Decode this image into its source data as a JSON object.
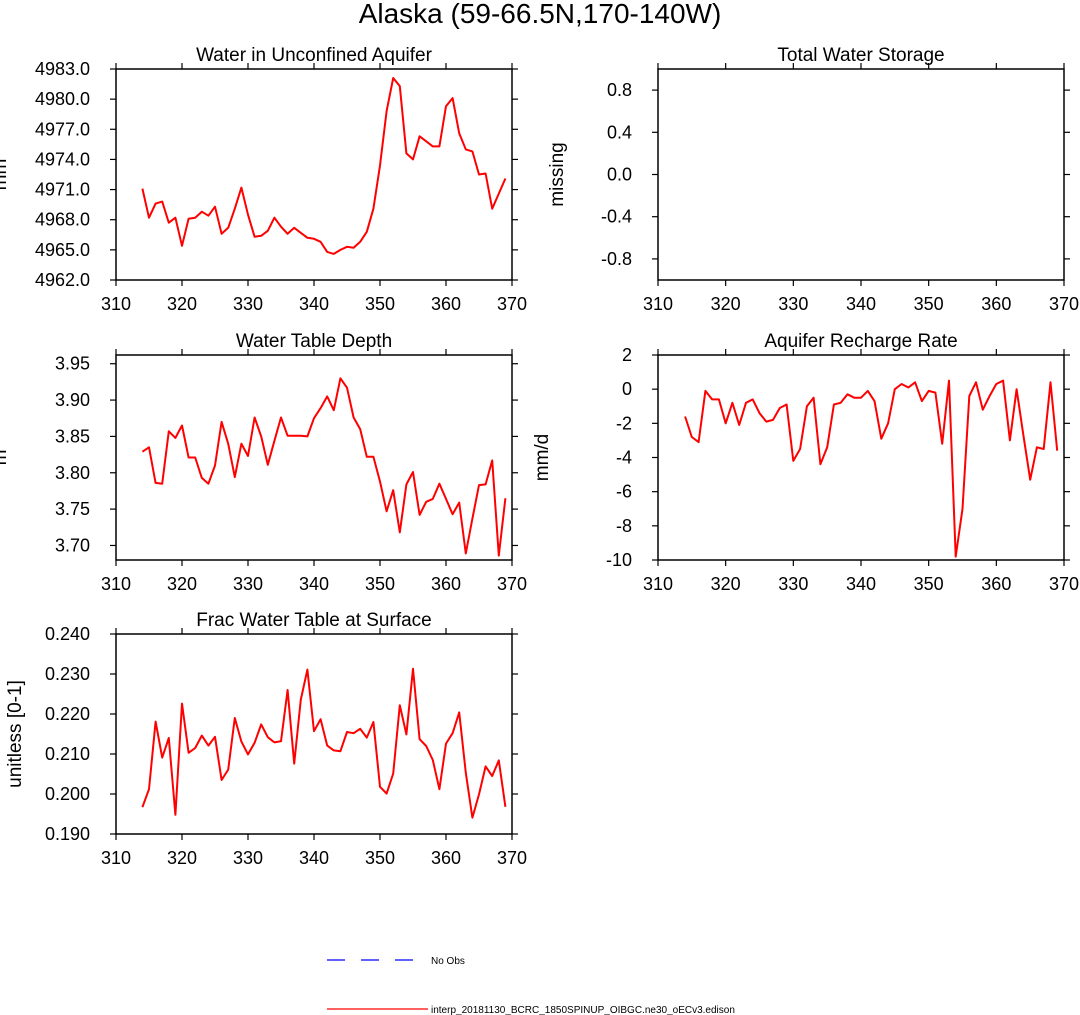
{
  "figure": {
    "title": "Alaska (59-66.5N,170-140W)"
  },
  "legend": {
    "obs_label": "No Obs",
    "obs_color": "#0000ff",
    "model_label": "interp_20181130_BCRC_1850SPINUP_OIBGC.ne30_oECv3.edison",
    "model_color": "#ff0000"
  },
  "chart_data": [
    {
      "type": "line",
      "title": "Water in Unconfined Aquifer",
      "xlabel": "",
      "ylabel": "mm",
      "xlim": [
        310,
        370
      ],
      "ylim": [
        4962.0,
        4983.0
      ],
      "xticks": [
        "310",
        "320",
        "330",
        "340",
        "350",
        "360",
        "370"
      ],
      "yticks": [
        "4962.0",
        "4965.0",
        "4968.0",
        "4971.0",
        "4974.0",
        "4977.0",
        "4980.0",
        "4983.0"
      ],
      "series": [
        {
          "color": "#ff0000",
          "x": [
            314,
            315,
            316,
            317,
            318,
            319,
            320,
            321,
            322,
            323,
            324,
            325,
            326,
            327,
            328,
            329,
            330,
            331,
            332,
            333,
            334,
            335,
            336,
            337,
            338,
            339,
            340,
            341,
            342,
            343,
            344,
            345,
            346,
            347,
            348,
            349,
            350,
            351,
            352,
            353,
            354,
            355,
            356,
            357,
            358,
            359,
            360,
            361,
            362,
            363,
            364,
            365,
            366,
            367,
            368,
            369
          ],
          "y": [
            4971.1,
            4968.2,
            4969.6,
            4969.8,
            4967.7,
            4968.2,
            4965.4,
            4968.1,
            4968.2,
            4968.8,
            4968.4,
            4969.3,
            4966.6,
            4967.2,
            4969.1,
            4971.2,
            4968.5,
            4966.3,
            4966.4,
            4966.9,
            4968.2,
            4967.3,
            4966.6,
            4967.2,
            4966.7,
            4966.2,
            4966.1,
            4965.8,
            4964.8,
            4964.6,
            4965.0,
            4965.3,
            4965.2,
            4965.8,
            4966.8,
            4969.1,
            4973.4,
            4978.8,
            4982.1,
            4981.3,
            4974.6,
            4974.0,
            4976.3,
            4975.8,
            4975.3,
            4975.3,
            4979.3,
            4980.1,
            4976.6,
            4975.0,
            4974.8,
            4972.5,
            4972.6,
            4969.1,
            4970.6,
            4972.1
          ]
        }
      ]
    },
    {
      "type": "line",
      "title": "Total Water Storage",
      "xlabel": "",
      "ylabel": "missing",
      "xlim": [
        310,
        370
      ],
      "ylim": [
        -1.0,
        1.0
      ],
      "xticks": [
        "310",
        "320",
        "330",
        "340",
        "350",
        "360",
        "370"
      ],
      "yticks": [
        "-0.8",
        "-0.4",
        "0.0",
        "0.4",
        "0.8"
      ],
      "series": []
    },
    {
      "type": "line",
      "title": "Water Table Depth",
      "xlabel": "",
      "ylabel": "m",
      "xlim": [
        310,
        370
      ],
      "ylim": [
        3.68,
        3.962
      ],
      "xticks": [
        "310",
        "320",
        "330",
        "340",
        "350",
        "360",
        "370"
      ],
      "yticks": [
        "3.70",
        "3.75",
        "3.80",
        "3.85",
        "3.90",
        "3.95"
      ],
      "series": [
        {
          "color": "#ff0000",
          "x": [
            314,
            315,
            316,
            317,
            318,
            319,
            320,
            321,
            322,
            323,
            324,
            325,
            326,
            327,
            328,
            329,
            330,
            331,
            332,
            333,
            334,
            335,
            336,
            337,
            338,
            339,
            340,
            341,
            342,
            343,
            344,
            345,
            346,
            347,
            348,
            349,
            350,
            351,
            352,
            353,
            354,
            355,
            356,
            357,
            358,
            359,
            360,
            361,
            362,
            363,
            364,
            365,
            366,
            367,
            368,
            369
          ],
          "y": [
            3.829,
            3.835,
            3.786,
            3.785,
            3.857,
            3.848,
            3.865,
            3.821,
            3.821,
            3.793,
            3.785,
            3.81,
            3.87,
            3.84,
            3.794,
            3.84,
            3.823,
            3.876,
            3.85,
            3.811,
            3.844,
            3.876,
            3.851,
            3.851,
            3.851,
            3.85,
            3.875,
            3.889,
            3.905,
            3.886,
            3.93,
            3.917,
            3.876,
            3.86,
            3.822,
            3.822,
            3.788,
            3.747,
            3.776,
            3.718,
            3.784,
            3.801,
            3.742,
            3.76,
            3.764,
            3.785,
            3.764,
            3.743,
            3.759,
            3.689,
            3.737,
            3.783,
            3.784,
            3.817,
            3.686,
            3.765
          ]
        }
      ]
    },
    {
      "type": "line",
      "title": "Aquifer Recharge Rate",
      "xlabel": "",
      "ylabel": "mm/d",
      "xlim": [
        310,
        370
      ],
      "ylim": [
        -10,
        2
      ],
      "xticks": [
        "310",
        "320",
        "330",
        "340",
        "350",
        "360",
        "370"
      ],
      "yticks": [
        "-10",
        "-8",
        "-6",
        "-4",
        "-2",
        "0",
        "2"
      ],
      "series": [
        {
          "color": "#ff0000",
          "x": [
            314,
            315,
            316,
            317,
            318,
            319,
            320,
            321,
            322,
            323,
            324,
            325,
            326,
            327,
            328,
            329,
            330,
            331,
            332,
            333,
            334,
            335,
            336,
            337,
            338,
            339,
            340,
            341,
            342,
            343,
            344,
            345,
            346,
            347,
            348,
            349,
            350,
            351,
            352,
            353,
            354,
            355,
            356,
            357,
            358,
            359,
            360,
            361,
            362,
            363,
            364,
            365,
            366,
            367,
            368,
            369
          ],
          "y": [
            -1.6,
            -2.8,
            -3.1,
            -0.1,
            -0.6,
            -0.6,
            -2.0,
            -0.8,
            -2.1,
            -0.8,
            -0.6,
            -1.4,
            -1.9,
            -1.8,
            -1.1,
            -0.9,
            -4.2,
            -3.5,
            -1.0,
            -0.5,
            -4.4,
            -3.4,
            -0.9,
            -0.8,
            -0.3,
            -0.5,
            -0.5,
            -0.1,
            -0.7,
            -2.9,
            -2.0,
            0.0,
            0.3,
            0.1,
            0.4,
            -0.7,
            -0.1,
            -0.2,
            -3.2,
            0.5,
            -9.8,
            -7.0,
            -0.4,
            0.4,
            -1.2,
            -0.4,
            0.3,
            0.5,
            -3.0,
            0.0,
            -2.7,
            -5.3,
            -3.4,
            -3.5,
            0.4,
            -3.6
          ]
        }
      ]
    },
    {
      "type": "line",
      "title": "Frac Water Table at Surface",
      "xlabel": "",
      "ylabel": "unitless [0-1]",
      "xlim": [
        310,
        370
      ],
      "ylim": [
        0.19,
        0.24
      ],
      "xticks": [
        "310",
        "320",
        "330",
        "340",
        "350",
        "360",
        "370"
      ],
      "yticks": [
        "0.190",
        "0.200",
        "0.210",
        "0.220",
        "0.230",
        "0.240"
      ],
      "series": [
        {
          "color": "#ff0000",
          "x": [
            314,
            315,
            316,
            317,
            318,
            319,
            320,
            321,
            322,
            323,
            324,
            325,
            326,
            327,
            328,
            329,
            330,
            331,
            332,
            333,
            334,
            335,
            336,
            337,
            338,
            339,
            340,
            341,
            342,
            343,
            344,
            345,
            346,
            347,
            348,
            349,
            350,
            351,
            352,
            353,
            354,
            355,
            356,
            357,
            358,
            359,
            360,
            361,
            362,
            363,
            364,
            365,
            366,
            367,
            368,
            369
          ],
          "y": [
            0.1967,
            0.2012,
            0.2181,
            0.2091,
            0.214,
            0.1948,
            0.2226,
            0.2103,
            0.2115,
            0.2146,
            0.2121,
            0.2143,
            0.2035,
            0.2061,
            0.219,
            0.2131,
            0.2099,
            0.2128,
            0.2174,
            0.2142,
            0.2129,
            0.2132,
            0.226,
            0.2076,
            0.2236,
            0.2311,
            0.2157,
            0.2187,
            0.2121,
            0.2109,
            0.2107,
            0.2155,
            0.2152,
            0.2163,
            0.2141,
            0.218,
            0.2018,
            0.2001,
            0.2051,
            0.2222,
            0.2149,
            0.2313,
            0.2137,
            0.212,
            0.2085,
            0.2012,
            0.2126,
            0.2152,
            0.2204,
            0.2053,
            0.1941,
            0.1999,
            0.2069,
            0.2045,
            0.2084,
            0.1968
          ]
        }
      ]
    }
  ]
}
